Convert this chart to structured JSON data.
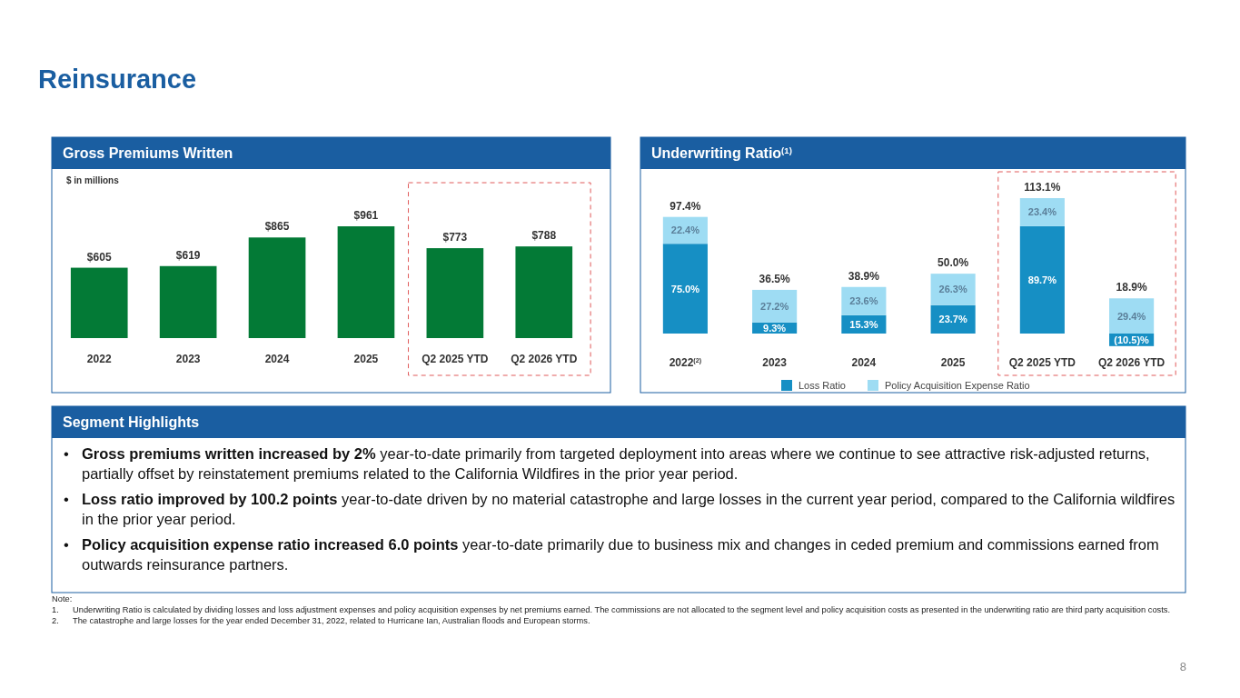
{
  "chart_data": [
    {
      "type": "other",
      "title": "Reinsurance",
      "annotations": [
        "Note:",
        "1.\tUnderwriting Ratio is calculated by dividing losses and loss adjustment expenses and policy acquisition expenses by net premiums earned. The commissions are not allocated to the segment level and policy acquisition costs as presented in the underwriting ratio are third party acquisition costs.",
        "2.\tThe catastrophe and large losses for the year ended December 31, 2022, related to Hurricane Ian, Australian floods and European storms.",
        "8"
      ]
    },
    {
      "type": "bar",
      "title": "Gross Premiums Written",
      "subtitle": "$ in millions",
      "categories": [
        "2022",
        "2023",
        "2024",
        "2025",
        "Q2 2025 YTD",
        "Q2 2026 YTD"
      ],
      "values": [
        605,
        619,
        865,
        961,
        773,
        788
      ],
      "value_labels": [
        "$605",
        "$619",
        "$865",
        "$961",
        "$773",
        "$788"
      ],
      "color": "#037a36"
    },
    {
      "type": "bar",
      "stacked": true,
      "title": "Underwriting Ratio$^{(1)}$",
      "categories": [
        "2022$^{(2)}$",
        "2023",
        "2024",
        "2025",
        "Q2 2025 YTD",
        "Q2 2026 YTD"
      ],
      "legend": "bottom",
      "totals": [
        "97.4%",
        "36.5%",
        "38.9%",
        "50.0%",
        "113.1%",
        "18.9%"
      ],
      "series": [
        {
          "name": "Loss Ratio",
          "color": "#168fc4",
          "values": [
            75.0,
            9.3,
            15.3,
            23.7,
            89.7,
            -10.5
          ],
          "value_labels": [
            "75.0%",
            "9.3%",
            "15.3%",
            "23.7%",
            "89.7%",
            "(10.5)%"
          ]
        },
        {
          "name": "Policy Acquisition Expense Ratio",
          "color": "#9edcf3",
          "values": [
            22.4,
            27.2,
            23.6,
            26.3,
            23.4,
            29.4
          ],
          "value_labels": [
            "22.4%",
            "27.2%",
            "23.6%",
            "26.3%",
            "23.4%",
            "29.4%"
          ]
        }
      ]
    },
    {
      "type": "other",
      "title": "Segment Highlights",
      "annotations": [
        "•\tGross premiums written increased by 2%",
        "year-to-date primarily from targeted deployment into areas where we continue to see attractive risk-adjusted returns, partially offset by reinstatement premiums related to the California Wildfires in the prior year period.",
        "•\tLoss ratio improved by 100.2 points",
        "year-to-date driven by no material catastrophe and large losses in the current year period, compared to the California wildfires in the prior year period.",
        "•\tPolicy acquisition expense ratio increased 6.0 points",
        "year-to-date primarily due to business mix and changes in ceded premium and commissions earned from outwards reinsurance partners."
      ]
    }
  ]
}
